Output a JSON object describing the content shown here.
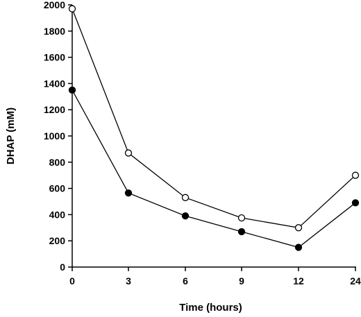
{
  "chart_data": {
    "type": "line",
    "xlabel": "Time (hours)",
    "ylabel": "DHAP (mM)",
    "categories": [
      "0",
      "3",
      "6",
      "9",
      "12",
      "24"
    ],
    "ylim": [
      0,
      2000
    ],
    "yticks": [
      0,
      200,
      400,
      600,
      800,
      1000,
      1200,
      1400,
      1600,
      1800,
      2000
    ],
    "grid": false,
    "legend": "none",
    "series": [
      {
        "marker": "open-circle",
        "color": "#000000",
        "values": [
          1970,
          870,
          530,
          375,
          300,
          700
        ]
      },
      {
        "marker": "filled-circle",
        "color": "#000000",
        "values": [
          1350,
          565,
          390,
          270,
          150,
          490
        ]
      }
    ]
  }
}
